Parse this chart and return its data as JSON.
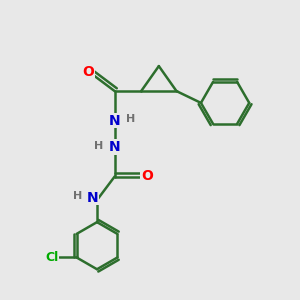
{
  "background_color": "#e8e8e8",
  "bond_color": "#2d6e2d",
  "bond_width": 1.8,
  "atom_colors": {
    "O": "#ff0000",
    "N": "#0000cc",
    "H": "#707070",
    "Cl": "#00aa00",
    "C": "#2d6e2d"
  },
  "figsize": [
    3.0,
    3.0
  ],
  "dpi": 100
}
